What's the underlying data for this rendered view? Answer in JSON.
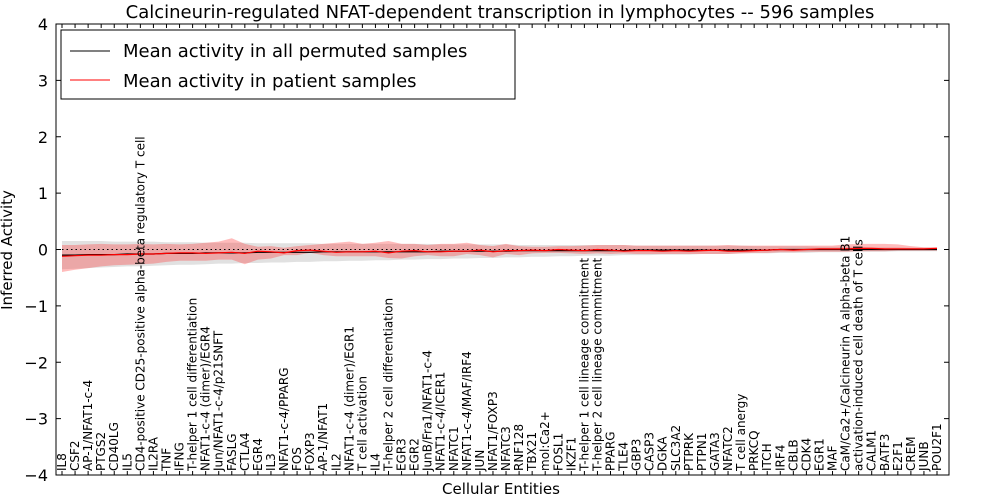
{
  "chart_data": {
    "type": "line",
    "title": "Calcineurin-regulated NFAT-dependent transcription in lymphocytes -- 596 samples",
    "xlabel": "Cellular Entities",
    "ylabel": "Inferred Activity",
    "ylim": [
      -4,
      4
    ],
    "yticks": [
      "4",
      "3",
      "2",
      "1",
      "0",
      "−1",
      "−2",
      "−3",
      "−4"
    ],
    "ytick_values": [
      4,
      3,
      2,
      1,
      0,
      -1,
      -2,
      -3,
      -4
    ],
    "legend_position": "top-left",
    "categories": [
      "IL8",
      "CSF2",
      "AP-1/NFAT1-c-4",
      "PTGS2",
      "CD40LG",
      "IL5",
      "CD4-positive CD25-positive alpha-beta regulatory T cell",
      "IL2RA",
      "TNF",
      "IFNG",
      "T-helper 1 cell differentiation",
      "NFAT1-c-4 (dimer)/EGR4",
      "Jun/NFAT1-c-4/p21SNFT",
      "FASLG",
      "CTLA4",
      "EGR4",
      "IL3",
      "NFAT1-c-4/PPARG",
      "FOS",
      "FOXP3",
      "AP-1/NFAT1",
      "IL2",
      "NFAT1-c-4 (dimer)/EGR1",
      "T cell activation",
      "IL4",
      "T-helper 2 cell differentiation",
      "EGR3",
      "EGR2",
      "JunB/Fra1/NFAT1-c-4",
      "NFAT1-c-4/ICER1",
      "NFATC1",
      "NFAT1-c-4/MAF/IRF4",
      "JUN",
      "NFAT1/FOXP3",
      "NFATC3",
      "RNF128",
      "TBX21",
      "mol:Ca2+",
      "FOSL1",
      "IKZF1",
      "T-helper 1 cell lineage commitment",
      "T-helper 2 cell lineage commitment",
      "PPARG",
      "TLE4",
      "GBP3",
      "CASP3",
      "DGKA",
      "SLC3A2",
      "PTPRK",
      "PTPN1",
      "GATA3",
      "NFATC2",
      "T cell anergy",
      "PRKCQ",
      "ITCH",
      "IRF4",
      "CBLB",
      "CDK4",
      "EGR1",
      "MAF",
      "CaM/Ca2+/Calcineurin A alpha-beta B1",
      "activation-induced cell death of T cells",
      "CALM1",
      "BATF3",
      "E2F1",
      "CREM",
      "JUNB",
      "POU2F1"
    ],
    "series": [
      {
        "name": "Mean activity in all permuted samples",
        "color": "#000000",
        "values": [
          -0.1,
          -0.1,
          -0.09,
          -0.09,
          -0.09,
          -0.08,
          -0.08,
          -0.08,
          -0.07,
          -0.07,
          -0.07,
          -0.06,
          -0.06,
          -0.06,
          -0.06,
          -0.05,
          -0.05,
          -0.05,
          -0.05,
          -0.05,
          -0.04,
          -0.04,
          -0.04,
          -0.04,
          -0.04,
          -0.04,
          -0.04,
          -0.04,
          -0.04,
          -0.03,
          -0.03,
          -0.03,
          -0.03,
          -0.03,
          -0.03,
          -0.02,
          -0.02,
          -0.02,
          -0.02,
          -0.02,
          -0.02,
          -0.02,
          -0.02,
          -0.02,
          -0.01,
          -0.01,
          -0.01,
          -0.01,
          -0.01,
          -0.01,
          -0.01,
          -0.01,
          -0.01,
          -0.01,
          -0.01,
          0.0,
          0.0,
          0.0,
          0.0,
          0.0,
          0.0,
          0.0,
          0.0,
          0.0,
          0.0,
          0.0,
          0.0,
          0.0
        ],
        "band_upper": [
          0.15,
          0.15,
          0.15,
          0.15,
          0.14,
          0.14,
          0.14,
          0.14,
          0.13,
          0.13,
          0.13,
          0.12,
          0.12,
          0.12,
          0.12,
          0.11,
          0.11,
          0.11,
          0.11,
          0.11,
          0.1,
          0.1,
          0.1,
          0.1,
          0.1,
          0.1,
          0.1,
          0.1,
          0.1,
          0.09,
          0.09,
          0.09,
          0.09,
          0.09,
          0.09,
          0.08,
          0.08,
          0.08,
          0.08,
          0.08,
          0.08,
          0.08,
          0.08,
          0.08,
          0.07,
          0.07,
          0.07,
          0.07,
          0.07,
          0.07,
          0.07,
          0.07,
          0.07,
          0.06,
          0.06,
          0.06,
          0.06,
          0.06,
          0.05,
          0.05,
          0.05,
          0.05,
          0.04,
          0.04,
          0.04,
          0.03,
          0.03,
          0.03
        ],
        "band_lower": [
          -0.35,
          -0.34,
          -0.33,
          -0.32,
          -0.31,
          -0.3,
          -0.3,
          -0.29,
          -0.28,
          -0.27,
          -0.27,
          -0.26,
          -0.25,
          -0.25,
          -0.24,
          -0.24,
          -0.23,
          -0.23,
          -0.22,
          -0.22,
          -0.21,
          -0.21,
          -0.2,
          -0.2,
          -0.19,
          -0.19,
          -0.18,
          -0.18,
          -0.17,
          -0.17,
          -0.16,
          -0.16,
          -0.15,
          -0.15,
          -0.14,
          -0.14,
          -0.13,
          -0.13,
          -0.12,
          -0.12,
          -0.11,
          -0.11,
          -0.11,
          -0.1,
          -0.1,
          -0.1,
          -0.09,
          -0.09,
          -0.09,
          -0.08,
          -0.08,
          -0.08,
          -0.07,
          -0.07,
          -0.07,
          -0.06,
          -0.06,
          -0.06,
          -0.05,
          -0.05,
          -0.05,
          -0.04,
          -0.04,
          -0.04,
          -0.03,
          -0.03,
          -0.03,
          -0.03
        ]
      },
      {
        "name": "Mean activity in patient samples",
        "color": "#ff0000",
        "values": [
          -0.12,
          -0.11,
          -0.1,
          -0.1,
          -0.09,
          -0.09,
          -0.08,
          -0.08,
          -0.07,
          -0.06,
          -0.06,
          -0.07,
          -0.06,
          -0.05,
          -0.07,
          -0.03,
          -0.04,
          -0.06,
          -0.02,
          -0.01,
          -0.03,
          -0.05,
          -0.04,
          -0.04,
          -0.03,
          -0.06,
          -0.03,
          -0.02,
          -0.04,
          -0.04,
          -0.03,
          -0.03,
          -0.01,
          -0.04,
          -0.02,
          -0.02,
          -0.01,
          -0.02,
          0.0,
          -0.01,
          -0.02,
          0.0,
          -0.01,
          -0.03,
          -0.02,
          -0.02,
          -0.03,
          -0.02,
          -0.03,
          -0.02,
          -0.01,
          -0.03,
          -0.03,
          -0.02,
          -0.01,
          0.0,
          -0.01,
          0.0,
          0.01,
          0.01,
          0.01,
          0.02,
          0.02,
          0.01,
          0.01,
          0.01,
          0.01,
          0.02
        ],
        "band_upper": [
          0.08,
          0.08,
          0.09,
          0.1,
          0.09,
          0.09,
          0.1,
          0.09,
          0.1,
          0.09,
          0.1,
          0.12,
          0.14,
          0.2,
          0.1,
          0.05,
          0.06,
          0.03,
          0.06,
          0.08,
          0.1,
          0.12,
          0.14,
          0.1,
          0.12,
          0.15,
          0.1,
          0.1,
          0.08,
          0.1,
          0.1,
          0.12,
          0.08,
          0.06,
          0.1,
          0.06,
          0.05,
          0.05,
          0.06,
          0.06,
          0.07,
          0.08,
          0.08,
          0.08,
          0.07,
          0.07,
          0.07,
          0.07,
          0.07,
          0.07,
          0.07,
          0.08,
          0.07,
          0.07,
          0.07,
          0.07,
          0.07,
          0.07,
          0.07,
          0.07,
          0.09,
          0.1,
          0.1,
          0.1,
          0.09,
          0.06,
          0.04,
          0.04
        ],
        "band_lower": [
          -0.4,
          -0.36,
          -0.33,
          -0.3,
          -0.28,
          -0.27,
          -0.26,
          -0.25,
          -0.22,
          -0.2,
          -0.2,
          -0.2,
          -0.18,
          -0.18,
          -0.26,
          -0.18,
          -0.16,
          -0.1,
          -0.1,
          -0.06,
          -0.1,
          -0.12,
          -0.12,
          -0.12,
          -0.12,
          -0.15,
          -0.16,
          -0.12,
          -0.1,
          -0.12,
          -0.12,
          -0.08,
          -0.1,
          -0.14,
          -0.08,
          -0.1,
          -0.07,
          -0.06,
          -0.06,
          -0.07,
          -0.08,
          -0.07,
          -0.08,
          -0.07,
          -0.08,
          -0.08,
          -0.08,
          -0.08,
          -0.08,
          -0.08,
          -0.08,
          -0.08,
          -0.07,
          -0.06,
          -0.06,
          -0.05,
          -0.05,
          -0.04,
          -0.04,
          -0.04,
          -0.04,
          -0.03,
          -0.03,
          -0.03,
          -0.02,
          -0.02,
          -0.02,
          -0.02
        ]
      }
    ],
    "reference_line": 0
  }
}
